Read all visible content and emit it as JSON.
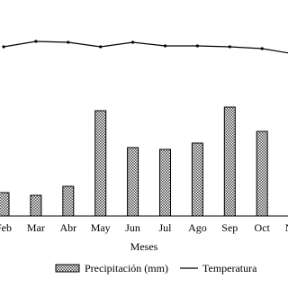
{
  "chart_data": {
    "type": "bar-line",
    "categories": [
      "Feb",
      "Mar",
      "Abr",
      "May",
      "Jun",
      "Jul",
      "Ago",
      "Sep",
      "Oct",
      "Nov"
    ],
    "series": [
      {
        "name": "Precipitación (mm)",
        "kind": "bar",
        "color": "#000000",
        "values": [
          26,
          23,
          33,
          117,
          76,
          74,
          81,
          121,
          94,
          null
        ]
      },
      {
        "name": "Temperatura",
        "kind": "line",
        "color": "#000000",
        "values": [
          188,
          194,
          193,
          188,
          193,
          189,
          189,
          188,
          186,
          180
        ]
      }
    ],
    "x_label": "Meses",
    "ylim": [
      0,
      240
    ]
  }
}
